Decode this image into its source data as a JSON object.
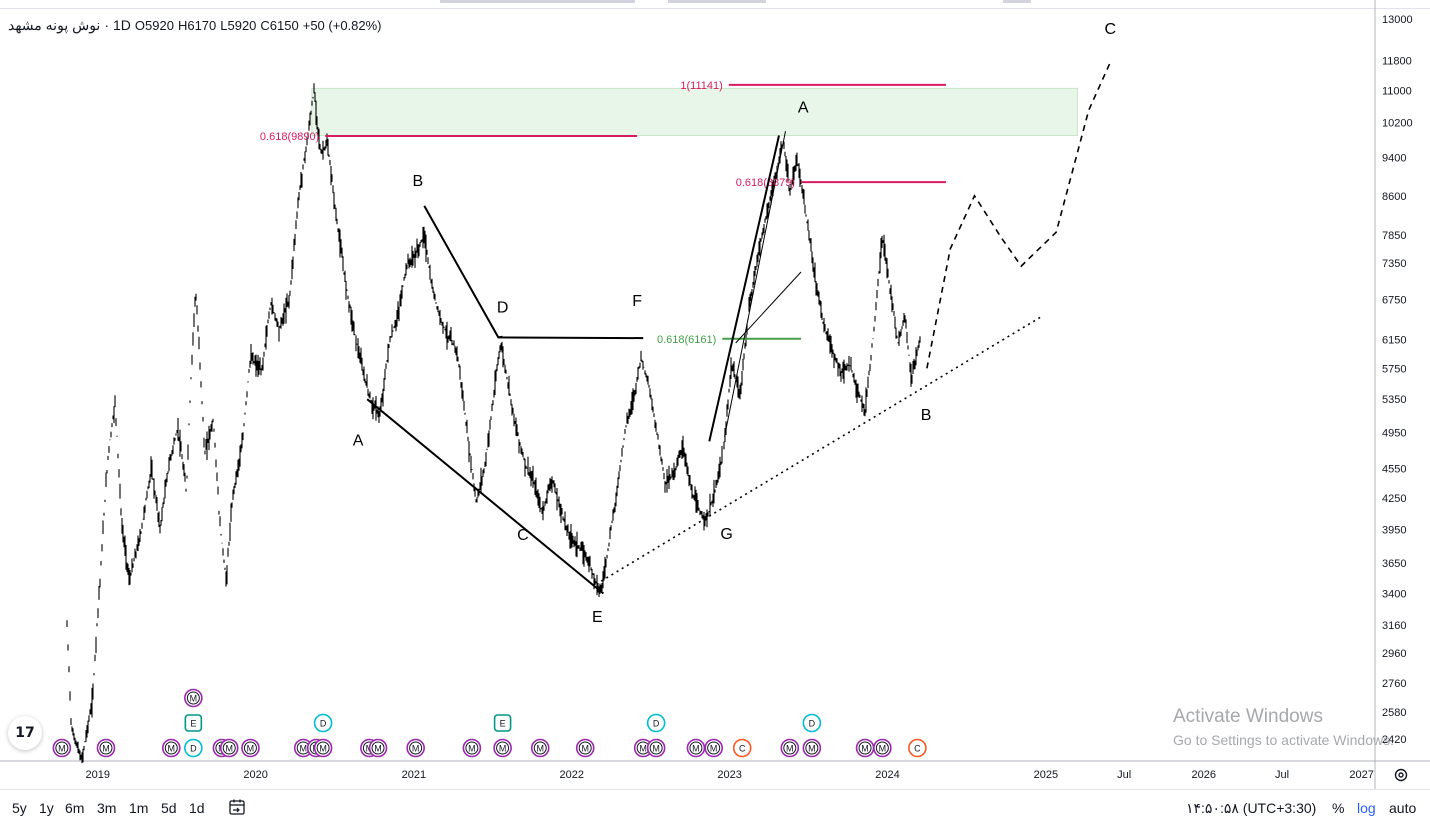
{
  "symbol": {
    "name": "نوش پونه مشهد",
    "interval": "1D",
    "open": "O5920",
    "high": "H6170",
    "low": "L5920",
    "close": "C6150",
    "change": "+50 (+0.82%)"
  },
  "colors": {
    "fib": "#d81b60",
    "fib_green": "#43a047",
    "zone": "#e8f5e9",
    "event_m": "#9c27b0",
    "event_d": "#00bcd4",
    "event_e": "#009688",
    "event_c": "#ff5722",
    "candles": "#000000"
  },
  "chart_data": {
    "type": "line",
    "title": "",
    "xlabel": "",
    "ylabel": "",
    "y_scale": "log",
    "ylim": [
      2300,
      13300
    ],
    "x_range": [
      "2018-05-20",
      "2027-02-01"
    ],
    "x_ticks": [
      "2019",
      "2020",
      "2021",
      "2022",
      "2023",
      "2024",
      "2025",
      "Jul",
      "2026",
      "Jul",
      "2027"
    ],
    "y_ticks": [
      "13000",
      "11800",
      "11000",
      "10200",
      "9400",
      "8600",
      "7850",
      "7350",
      "6750",
      "6150",
      "5750",
      "5350",
      "4950",
      "4550",
      "4250",
      "3950",
      "3650",
      "3400",
      "3160",
      "2960",
      "2760",
      "2580",
      "2420"
    ],
    "price_path": [
      [
        "2018-10-20",
        3280
      ],
      [
        "2018-11-01",
        2480
      ],
      [
        "2018-11-25",
        2300
      ],
      [
        "2018-12-20",
        2650
      ],
      [
        "2019-01-08",
        3600
      ],
      [
        "2019-01-25",
        4700
      ],
      [
        "2019-02-10",
        5300
      ],
      [
        "2019-02-25",
        4000
      ],
      [
        "2019-03-15",
        3500
      ],
      [
        "2019-04-10",
        3900
      ],
      [
        "2019-05-05",
        4550
      ],
      [
        "2019-05-25",
        3950
      ],
      [
        "2019-06-15",
        4600
      ],
      [
        "2019-07-05",
        5000
      ],
      [
        "2019-07-25",
        4300
      ],
      [
        "2019-08-15",
        6900
      ],
      [
        "2019-09-05",
        4700
      ],
      [
        "2019-09-25",
        5100
      ],
      [
        "2019-10-10",
        4000
      ],
      [
        "2019-10-25",
        3500
      ],
      [
        "2019-11-10",
        4300
      ],
      [
        "2019-12-01",
        4800
      ],
      [
        "2019-12-20",
        5900
      ],
      [
        "2020-01-15",
        5700
      ],
      [
        "2020-02-05",
        6700
      ],
      [
        "2020-02-25",
        6300
      ],
      [
        "2020-03-20",
        6800
      ],
      [
        "2020-04-10",
        8600
      ],
      [
        "2020-05-01",
        9900
      ],
      [
        "2020-05-15",
        11000
      ],
      [
        "2020-05-30",
        9500
      ],
      [
        "2020-06-15",
        9700
      ],
      [
        "2020-07-05",
        8200
      ],
      [
        "2020-07-25",
        7100
      ],
      [
        "2020-08-15",
        6300
      ],
      [
        "2020-09-05",
        5700
      ],
      [
        "2020-09-25",
        5300
      ],
      [
        "2020-10-15",
        5150
      ],
      [
        "2020-11-05",
        6100
      ],
      [
        "2020-11-25",
        6500
      ],
      [
        "2020-12-15",
        7300
      ],
      [
        "2021-01-05",
        7500
      ],
      [
        "2021-01-25",
        7850
      ],
      [
        "2021-02-10",
        7000
      ],
      [
        "2021-03-01",
        6500
      ],
      [
        "2021-03-20",
        6200
      ],
      [
        "2021-04-10",
        6000
      ],
      [
        "2021-05-05",
        4900
      ],
      [
        "2021-05-25",
        4200
      ],
      [
        "2021-06-15",
        4600
      ],
      [
        "2021-07-05",
        5400
      ],
      [
        "2021-07-20",
        6100
      ],
      [
        "2021-08-05",
        5600
      ],
      [
        "2021-08-25",
        5000
      ],
      [
        "2021-09-15",
        4600
      ],
      [
        "2021-10-05",
        4400
      ],
      [
        "2021-10-25",
        4100
      ],
      [
        "2021-11-15",
        4450
      ],
      [
        "2021-12-05",
        4150
      ],
      [
        "2021-12-25",
        3900
      ],
      [
        "2022-01-15",
        3800
      ],
      [
        "2022-02-05",
        3700
      ],
      [
        "2022-02-25",
        3500
      ],
      [
        "2022-03-10",
        3420
      ],
      [
        "2022-03-25",
        3750
      ],
      [
        "2022-04-15",
        4300
      ],
      [
        "2022-05-05",
        5000
      ],
      [
        "2022-05-25",
        5400
      ],
      [
        "2022-06-10",
        5900
      ],
      [
        "2022-06-25",
        5600
      ],
      [
        "2022-07-15",
        5000
      ],
      [
        "2022-08-05",
        4400
      ],
      [
        "2022-08-25",
        4500
      ],
      [
        "2022-09-15",
        4800
      ],
      [
        "2022-10-05",
        4300
      ],
      [
        "2022-10-25",
        4100
      ],
      [
        "2022-11-10",
        4050
      ],
      [
        "2022-11-30",
        4350
      ],
      [
        "2022-12-20",
        4800
      ],
      [
        "2023-01-05",
        5800
      ],
      [
        "2023-01-25",
        5400
      ],
      [
        "2023-02-15",
        6600
      ],
      [
        "2023-03-10",
        7600
      ],
      [
        "2023-04-01",
        8400
      ],
      [
        "2023-04-20",
        9100
      ],
      [
        "2023-05-05",
        9800
      ],
      [
        "2023-05-20",
        8600
      ],
      [
        "2023-06-05",
        9400
      ],
      [
        "2023-06-25",
        8300
      ],
      [
        "2023-07-15",
        7200
      ],
      [
        "2023-08-05",
        6400
      ],
      [
        "2023-08-25",
        6000
      ],
      [
        "2023-09-15",
        5700
      ],
      [
        "2023-10-05",
        5800
      ],
      [
        "2023-10-25",
        5450
      ],
      [
        "2023-11-10",
        5200
      ],
      [
        "2023-12-01",
        6300
      ],
      [
        "2023-12-20",
        7800
      ],
      [
        "2024-01-05",
        7000
      ],
      [
        "2024-01-25",
        6100
      ],
      [
        "2024-02-10",
        6500
      ],
      [
        "2024-02-25",
        5600
      ],
      [
        "2024-03-10",
        6000
      ],
      [
        "2024-03-18",
        6150
      ]
    ],
    "fib_levels": [
      {
        "label": "1(11141)",
        "value": 11141,
        "x1": "2022-12-30",
        "x2": "2024-05-15",
        "color": "fib"
      },
      {
        "label": "0.618(9890)",
        "value": 9890,
        "x1": "2020-06-10",
        "x2": "2022-06-01",
        "color": "fib"
      },
      {
        "label": "0.618(8879)",
        "value": 8879,
        "x1": "2023-06-15",
        "x2": "2024-05-15",
        "color": "fib"
      },
      {
        "label": "0.618(6161)",
        "value": 6161,
        "x1": "2022-12-15",
        "x2": "2023-06-15",
        "color": "fib_green"
      }
    ],
    "zone": {
      "x1": "2020-05-10",
      "x2": "2025-03-15",
      "y1": 9900,
      "y2": 11050
    },
    "wave_lines": [
      {
        "style": "solid",
        "points": [
          [
            "2020-09-15",
            5350
          ],
          [
            "2022-03-15",
            3400
          ]
        ]
      },
      {
        "style": "solid",
        "points": [
          [
            "2021-01-25",
            8400
          ],
          [
            "2021-07-15",
            6180
          ],
          [
            "2022-06-15",
            6170
          ]
        ]
      },
      {
        "style": "solid",
        "points": [
          [
            "2021-07-15",
            6180
          ],
          [
            "2021-07-25",
            6190
          ]
        ]
      },
      {
        "style": "solid",
        "points": [
          [
            "2022-11-15",
            4850
          ],
          [
            "2023-04-25",
            9900
          ]
        ]
      },
      {
        "style": "solid",
        "points": [
          [
            "2023-01-15",
            6100
          ],
          [
            "2023-06-15",
            7200
          ]
        ]
      },
      {
        "style": "solid",
        "points": [
          [
            "2022-12-20",
            4900
          ],
          [
            "2023-05-10",
            10000
          ]
        ]
      },
      {
        "style": "dotted",
        "points": [
          [
            "2022-03-10",
            3500
          ],
          [
            "2024-12-25",
            6500
          ]
        ]
      },
      {
        "style": "dashed",
        "points": [
          [
            "2024-04-01",
            5750
          ],
          [
            "2024-05-25",
            7600
          ],
          [
            "2024-07-20",
            8600
          ],
          [
            "2024-09-20",
            7800
          ],
          [
            "2024-11-05",
            7300
          ],
          [
            "2025-01-25",
            7900
          ],
          [
            "2025-04-10",
            10500
          ],
          [
            "2025-06-01",
            11800
          ]
        ]
      }
    ],
    "wave_labels": [
      {
        "text": "C",
        "x": "2025-05-30",
        "y": 12550
      },
      {
        "text": "A",
        "x": "2023-06-20",
        "y": 10450
      },
      {
        "text": "B",
        "x": "2021-01-10",
        "y": 8800
      },
      {
        "text": "D",
        "x": "2021-07-25",
        "y": 6550
      },
      {
        "text": "F",
        "x": "2022-06-01",
        "y": 6650
      },
      {
        "text": "A",
        "x": "2020-08-25",
        "y": 4800
      },
      {
        "text": "C",
        "x": "2021-09-10",
        "y": 3850
      },
      {
        "text": "E",
        "x": "2022-03-01",
        "y": 3180
      },
      {
        "text": "G",
        "x": "2022-12-25",
        "y": 3860
      },
      {
        "text": "B",
        "x": "2024-03-30",
        "y": 5100
      }
    ],
    "events": [
      {
        "text": "M",
        "kind": "m",
        "x": "2018-10-10",
        "row": 0
      },
      {
        "text": "M",
        "kind": "m",
        "x": "2019-01-20",
        "row": 0
      },
      {
        "text": "M",
        "kind": "m",
        "x": "2019-06-20",
        "row": 0
      },
      {
        "text": "D",
        "kind": "d",
        "x": "2019-08-10",
        "row": 0
      },
      {
        "text": "E",
        "kind": "e",
        "x": "2019-08-10",
        "row": 1
      },
      {
        "text": "M",
        "kind": "m",
        "x": "2019-08-10",
        "row": 2
      },
      {
        "text": "M",
        "kind": "m",
        "x": "2019-10-15",
        "row": 0
      },
      {
        "text": "M",
        "kind": "m",
        "x": "2019-11-01",
        "row": 0
      },
      {
        "text": "M",
        "kind": "m",
        "x": "2019-12-20",
        "row": 0
      },
      {
        "text": "M",
        "kind": "m",
        "x": "2020-04-20",
        "row": 0
      },
      {
        "text": "M",
        "kind": "m",
        "x": "2020-05-20",
        "row": 0
      },
      {
        "text": "M",
        "kind": "m",
        "x": "2020-06-05",
        "row": 0
      },
      {
        "text": "D",
        "kind": "d",
        "x": "2020-06-05",
        "row": 1
      },
      {
        "text": "M",
        "kind": "m",
        "x": "2020-09-20",
        "row": 0
      },
      {
        "text": "M",
        "kind": "m",
        "x": "2020-10-10",
        "row": 0
      },
      {
        "text": "M",
        "kind": "m",
        "x": "2021-01-05",
        "row": 0
      },
      {
        "text": "M",
        "kind": "m",
        "x": "2021-05-15",
        "row": 0
      },
      {
        "text": "M",
        "kind": "m",
        "x": "2021-07-25",
        "row": 0
      },
      {
        "text": "E",
        "kind": "e",
        "x": "2021-07-25",
        "row": 1
      },
      {
        "text": "M",
        "kind": "m",
        "x": "2021-10-20",
        "row": 0
      },
      {
        "text": "M",
        "kind": "m",
        "x": "2022-02-01",
        "row": 0
      },
      {
        "text": "M",
        "kind": "m",
        "x": "2022-06-15",
        "row": 0
      },
      {
        "text": "M",
        "kind": "m",
        "x": "2022-07-15",
        "row": 0
      },
      {
        "text": "D",
        "kind": "d",
        "x": "2022-07-15",
        "row": 1
      },
      {
        "text": "M",
        "kind": "m",
        "x": "2022-10-15",
        "row": 0
      },
      {
        "text": "M",
        "kind": "m",
        "x": "2022-11-25",
        "row": 0
      },
      {
        "text": "C",
        "kind": "c",
        "x": "2023-01-30",
        "row": 0
      },
      {
        "text": "M",
        "kind": "m",
        "x": "2023-05-20",
        "row": 0
      },
      {
        "text": "M",
        "kind": "m",
        "x": "2023-07-10",
        "row": 0
      },
      {
        "text": "D",
        "kind": "d",
        "x": "2023-07-10",
        "row": 1
      },
      {
        "text": "M",
        "kind": "m",
        "x": "2023-11-10",
        "row": 0
      },
      {
        "text": "M",
        "kind": "m",
        "x": "2023-12-20",
        "row": 0
      },
      {
        "text": "C",
        "kind": "c",
        "x": "2024-03-10",
        "row": 0
      }
    ]
  },
  "toolbar": {
    "ranges": [
      "5y",
      "1y",
      "6m",
      "3m",
      "1m",
      "5d",
      "1d"
    ],
    "clock": "۱۴:۵۰:۵۸ (UTC+3:30)",
    "percent_label": "%",
    "log_label": "log",
    "auto_label": "auto"
  },
  "watermark": {
    "line1": "Activate Windows",
    "line2": "Go to Settings to activate Windows."
  },
  "logo_text": "17"
}
